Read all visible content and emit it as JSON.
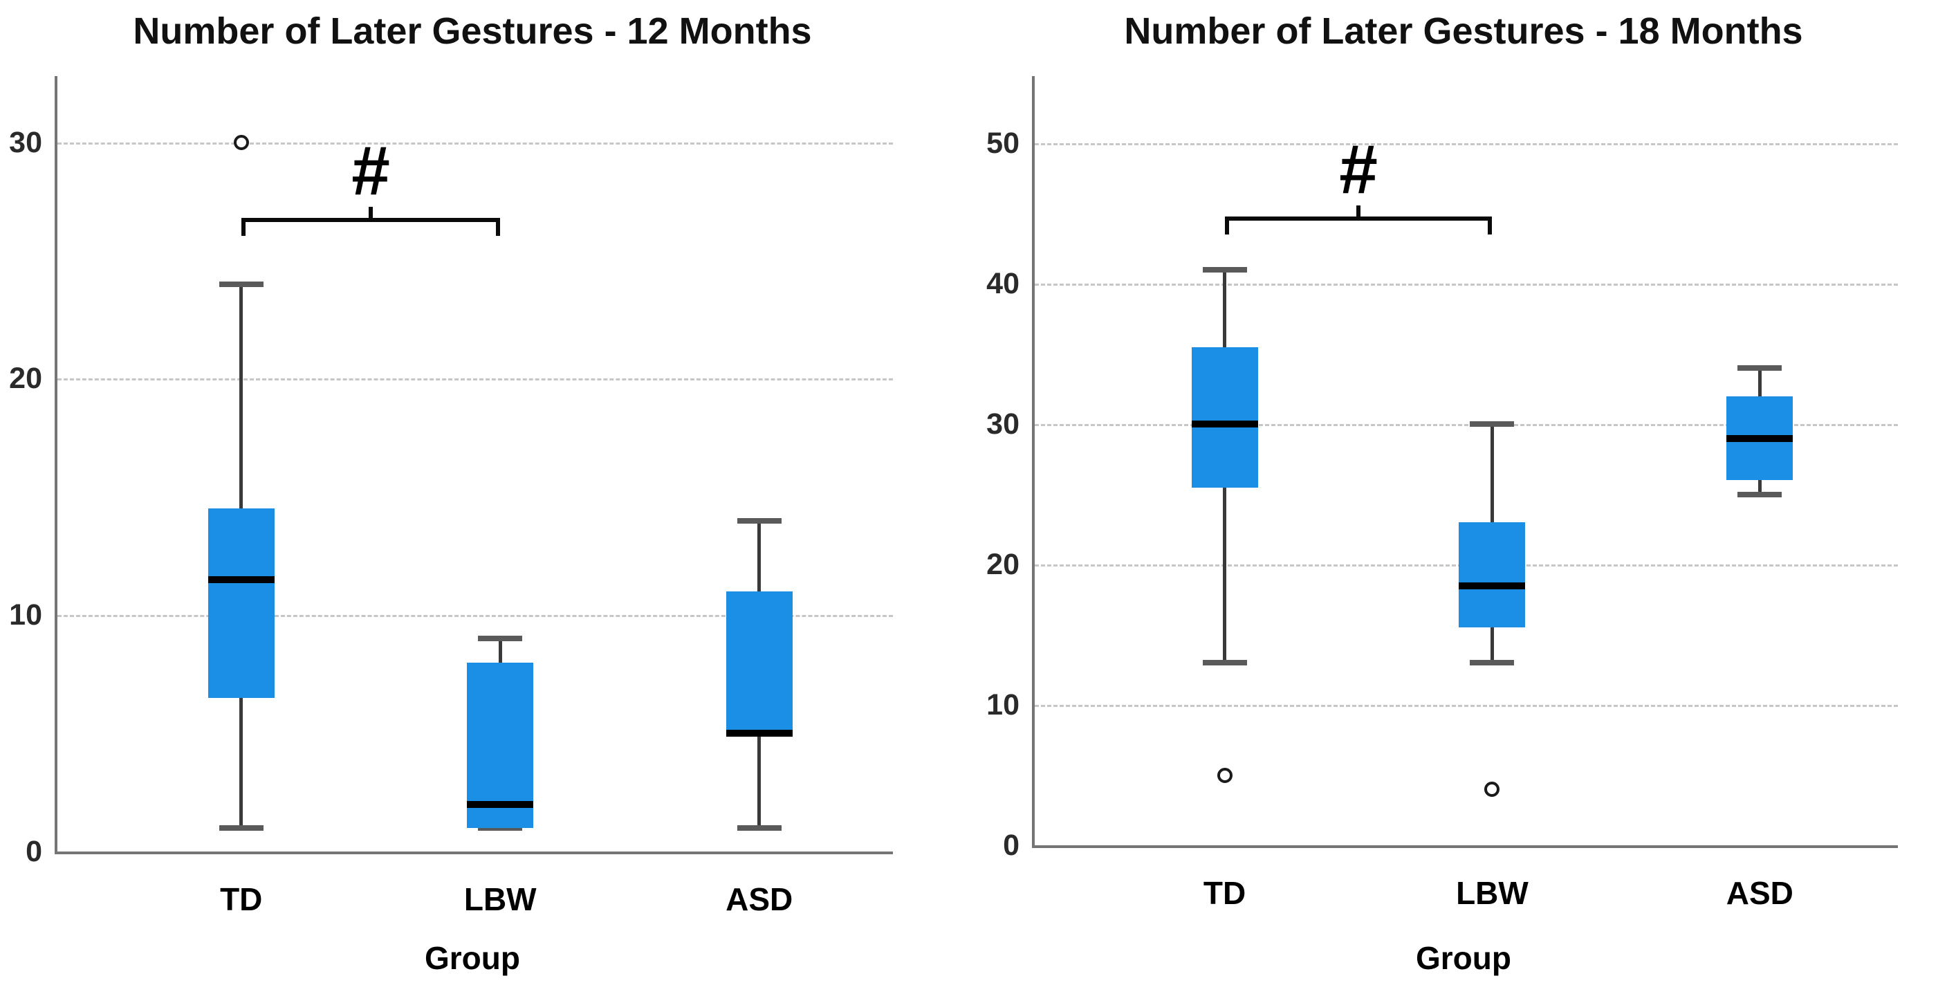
{
  "page": {
    "background": "#ffffff"
  },
  "colors": {
    "box_fill": "#1b8ee6",
    "median_line": "#000000",
    "whisker_line": "#3a3a3a",
    "whisker_cap": "#5a5a5a",
    "gridline": "#c6c6c6",
    "axis_line": "#757575",
    "text": "#111111"
  },
  "chart_data": [
    {
      "type": "box",
      "title": "Number of Later Gestures - 12 Months",
      "xlabel": "Group",
      "categories": [
        "TD",
        "LBW",
        "ASD"
      ],
      "ylim": [
        0,
        32.8
      ],
      "yticks": [
        0,
        10,
        20,
        30
      ],
      "grid": "horizontal-dashed",
      "legend": "none",
      "center_fracs": [
        0.22,
        0.53,
        0.84
      ],
      "series": [
        {
          "name": "TD",
          "whisker_low": 1,
          "q1": 6.5,
          "median": 11.5,
          "q3": 14.5,
          "whisker_high": 24,
          "outliers": [
            30
          ]
        },
        {
          "name": "LBW",
          "whisker_low": 1,
          "q1": 1,
          "median": 2,
          "q3": 8,
          "whisker_high": 9,
          "outliers": []
        },
        {
          "name": "ASD",
          "whisker_low": 1,
          "q1": 5,
          "median": 5,
          "q3": 11,
          "whisker_high": 14,
          "outliers": []
        }
      ],
      "annotation": {
        "label": "#",
        "between": [
          "TD",
          "LBW"
        ],
        "line_value": 26.8
      }
    },
    {
      "type": "box",
      "title": "Number of Later Gestures - 18 Months",
      "xlabel": "Group",
      "categories": [
        "TD",
        "LBW",
        "ASD"
      ],
      "ylim": [
        0,
        54.8
      ],
      "yticks": [
        0,
        10,
        20,
        30,
        40,
        50
      ],
      "grid": "horizontal-dashed",
      "legend": "none",
      "center_fracs": [
        0.22,
        0.53,
        0.84
      ],
      "series": [
        {
          "name": "TD",
          "whisker_low": 13,
          "q1": 25.5,
          "median": 30,
          "q3": 35.5,
          "whisker_high": 41,
          "outliers": [
            5
          ]
        },
        {
          "name": "LBW",
          "whisker_low": 13,
          "q1": 15.5,
          "median": 18.5,
          "q3": 23,
          "whisker_high": 30,
          "outliers": [
            4
          ]
        },
        {
          "name": "ASD",
          "whisker_low": 25,
          "q1": 26,
          "median": 29,
          "q3": 32,
          "whisker_high": 34,
          "outliers": []
        }
      ],
      "annotation": {
        "label": "#",
        "between": [
          "TD",
          "LBW"
        ],
        "line_value": 44.8
      }
    }
  ]
}
